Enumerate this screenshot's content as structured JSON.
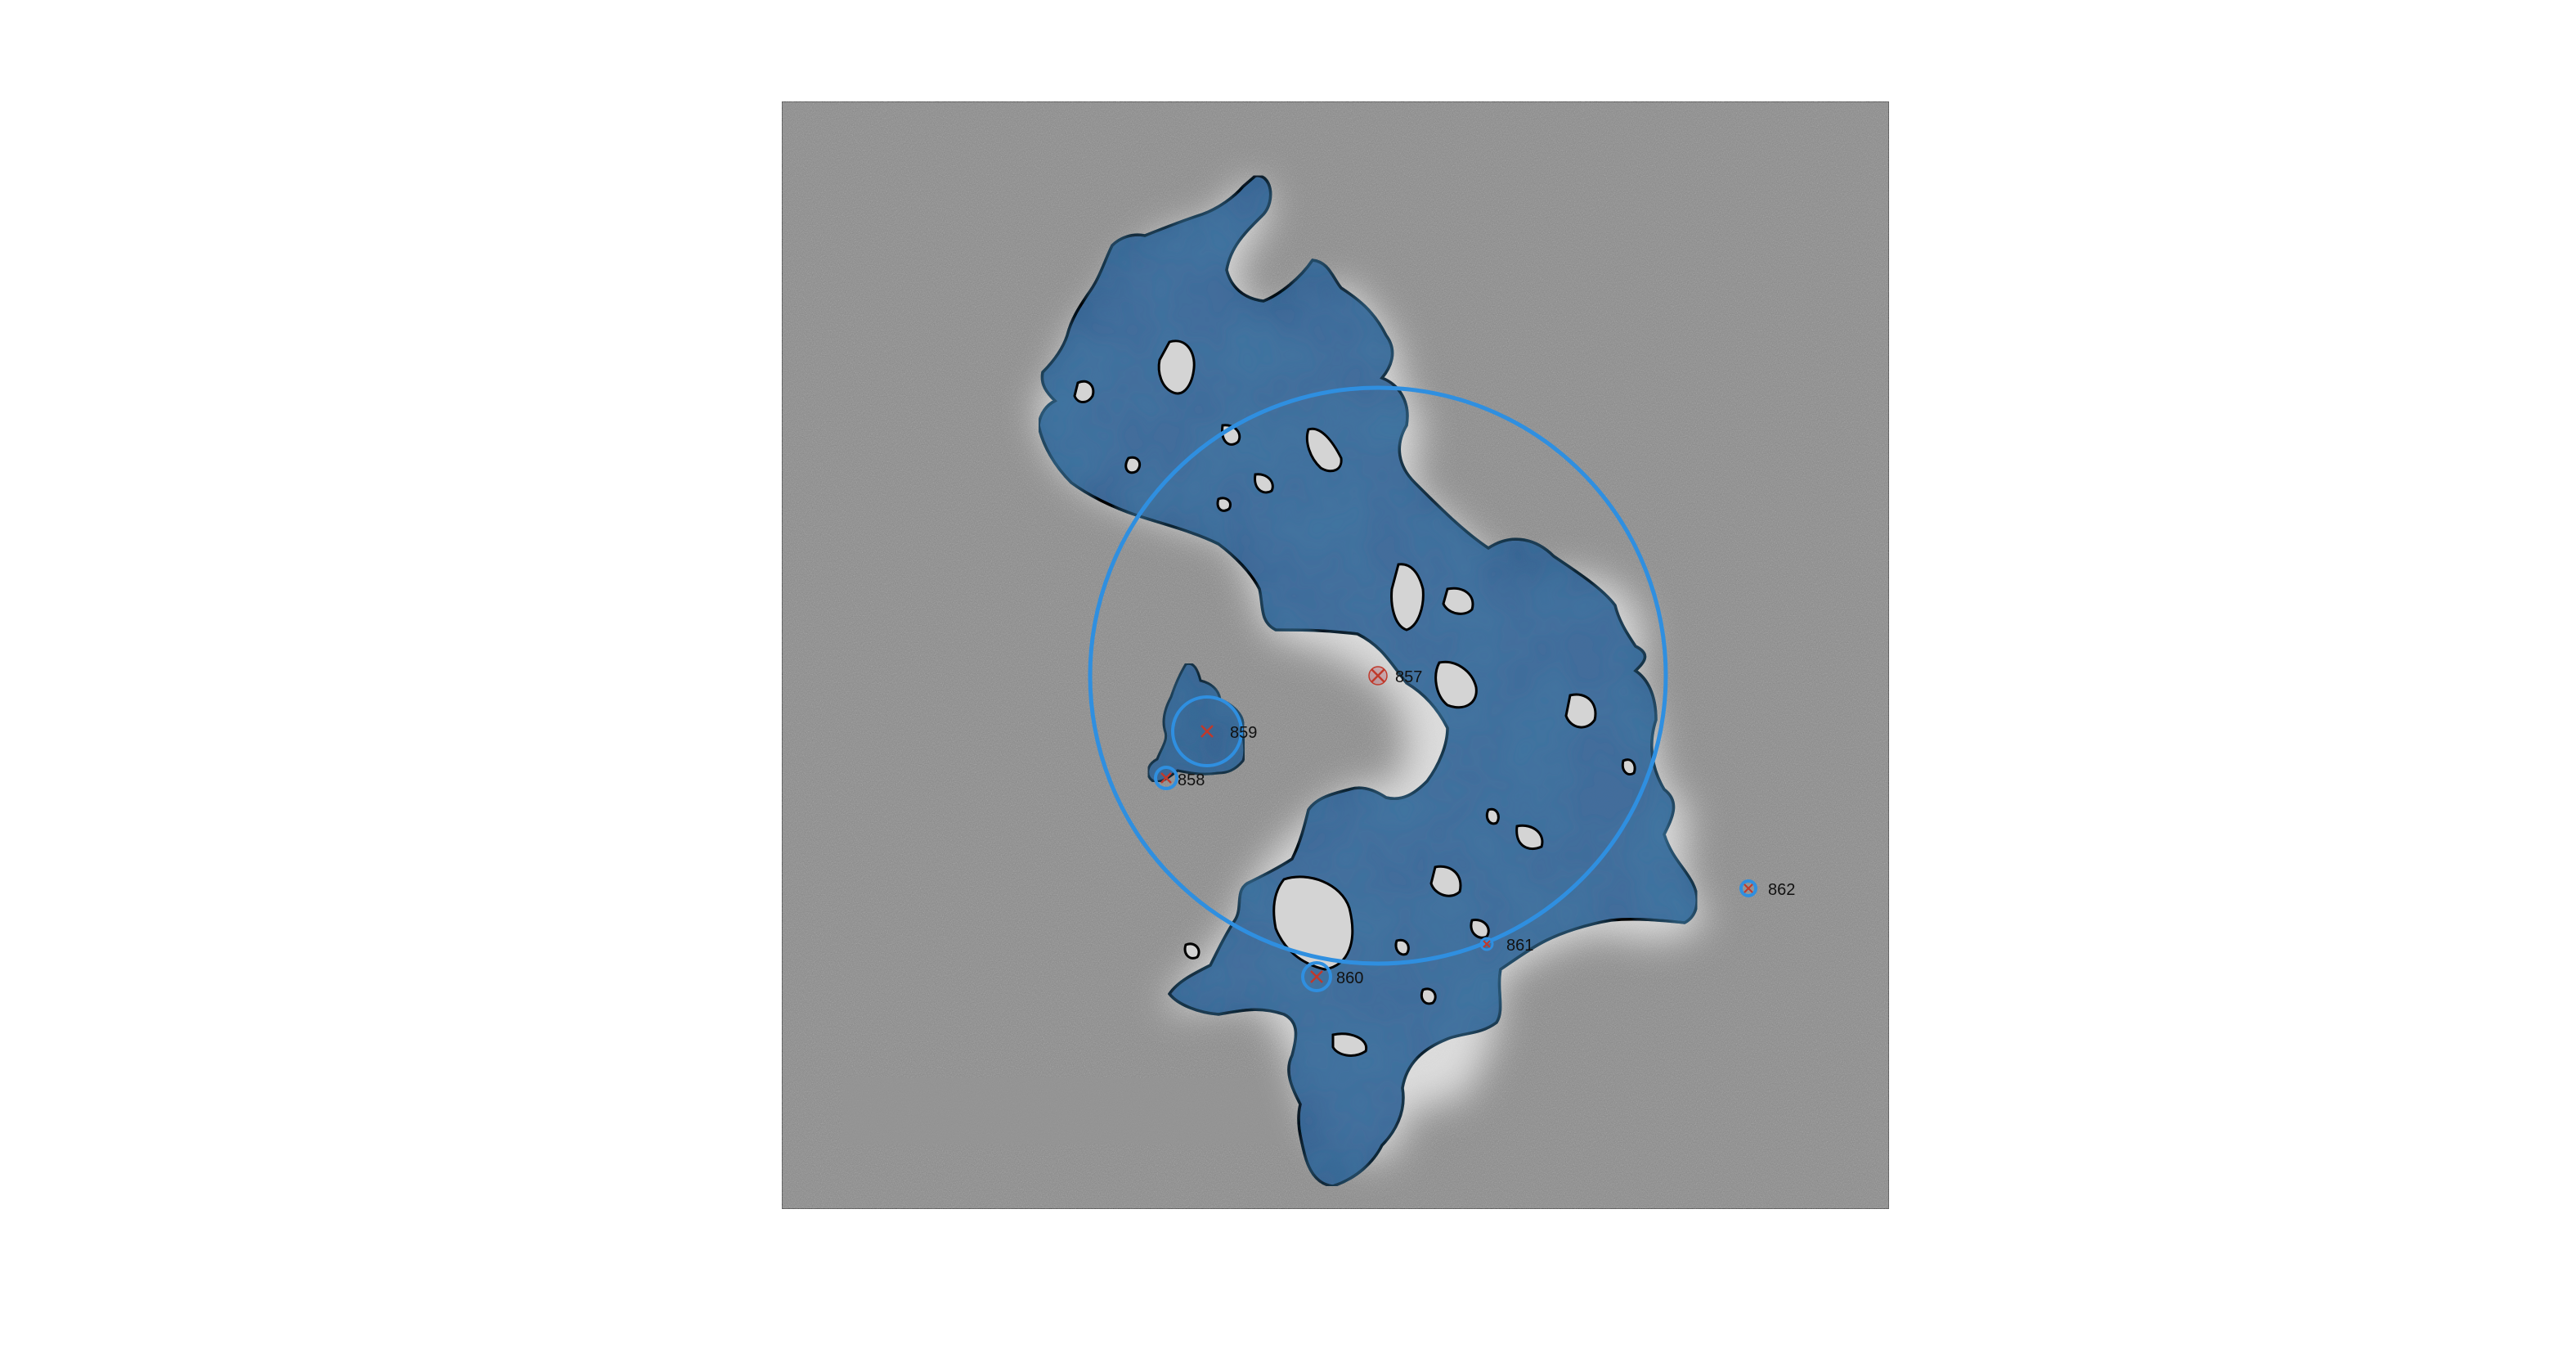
{
  "image": {
    "background_color": "#8a8a8a",
    "region_fill": "#2f5f93",
    "region_stroke": "#000000",
    "circle_color": "#2f8fe0",
    "marker_color": "#c0392b"
  },
  "labels": {
    "l857": "857",
    "l858": "858",
    "l859": "859",
    "l860": "860",
    "l861": "861",
    "l862": "862"
  }
}
